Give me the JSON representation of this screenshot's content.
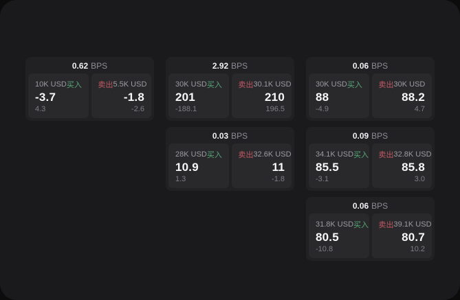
{
  "unit_label": "BPS",
  "labels": {
    "buy": "买入",
    "sell": "卖出"
  },
  "colors": {
    "buy_accent": "#55a878",
    "sell_accent": "#c05964",
    "page_background": "#1a1a1c",
    "card_background": "#212124",
    "panel_background": "#29292c"
  },
  "cards": [
    {
      "bps": "0.62",
      "buy": {
        "size": "10K USD",
        "value": "-3.7",
        "sub": "4.3"
      },
      "sell": {
        "size": "5.5K USD",
        "value": "-1.8",
        "sub": "-2.6"
      }
    },
    {
      "bps": "2.92",
      "buy": {
        "size": "30K USD",
        "value": "201",
        "sub": "-188.1"
      },
      "sell": {
        "size": "30.1K USD",
        "value": "210",
        "sub": "196.5"
      }
    },
    {
      "bps": "0.06",
      "buy": {
        "size": "30K USD",
        "value": "88",
        "sub": "-4.9"
      },
      "sell": {
        "size": "30K USD",
        "value": "88.2",
        "sub": "4.7"
      }
    },
    {
      "bps": "0.03",
      "buy": {
        "size": "28K USD",
        "value": "10.9",
        "sub": "1.3"
      },
      "sell": {
        "size": "32.6K USD",
        "value": "11",
        "sub": "-1.8"
      }
    },
    {
      "bps": "0.09",
      "buy": {
        "size": "34.1K USD",
        "value": "85.5",
        "sub": "-3.1"
      },
      "sell": {
        "size": "32.8K USD",
        "value": "85.8",
        "sub": "3.0"
      }
    },
    {
      "bps": "0.06",
      "buy": {
        "size": "31.8K USD",
        "value": "80.5",
        "sub": "-10.8"
      },
      "sell": {
        "size": "39.1K USD",
        "value": "80.7",
        "sub": "10.2"
      }
    }
  ]
}
